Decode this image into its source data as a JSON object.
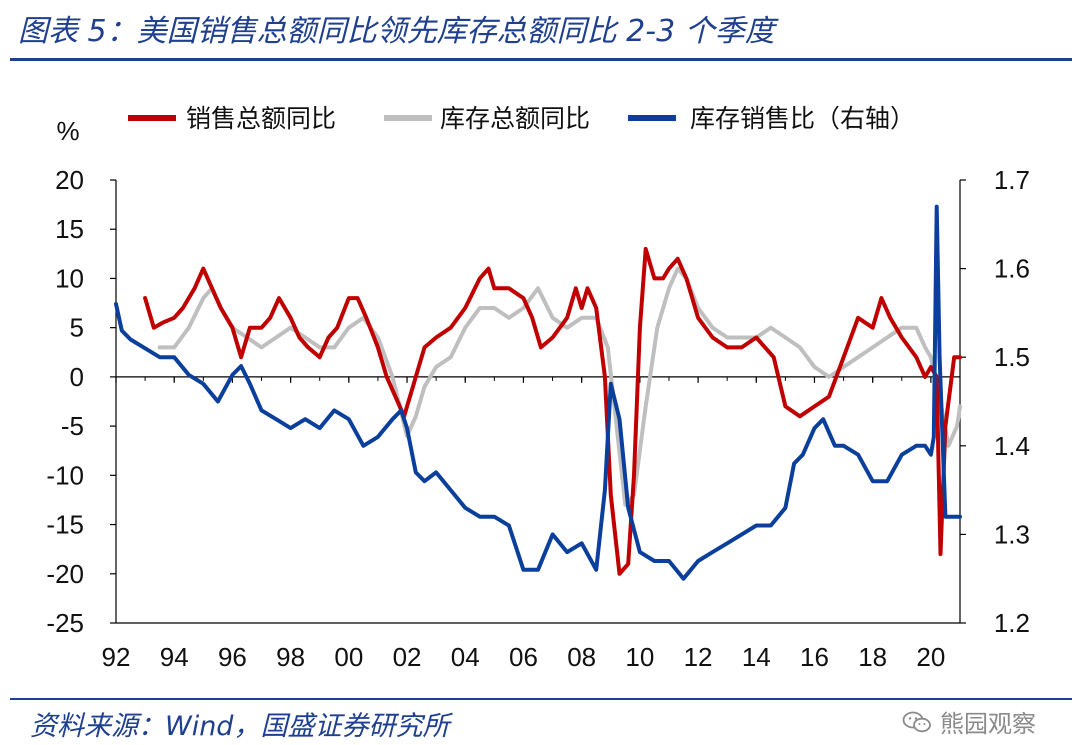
{
  "header": {
    "title": "图表 5：美国销售总额同比领先库存总额同比 2-3 个季度"
  },
  "footer": {
    "source": "资料来源：Wind，国盛证券研究所",
    "watermark_text": "熊园观察",
    "watermark_icon": "wechat-icon"
  },
  "colors": {
    "sales": "#c00000",
    "inventory": "#bfbfbf",
    "ratio": "#0b3f9c",
    "brand": "#1f3f8f"
  },
  "chart_data": {
    "type": "line",
    "left_unit": "%",
    "legend_position": "top",
    "grid": false,
    "x_ticks": [
      "92",
      "94",
      "96",
      "98",
      "00",
      "02",
      "04",
      "06",
      "08",
      "10",
      "12",
      "14",
      "16",
      "18",
      "20"
    ],
    "left_ylim": [
      -25,
      20
    ],
    "left_ticks": [
      "20",
      "15",
      "10",
      "5",
      "0",
      "-5",
      "-10",
      "-15",
      "-20",
      "-25"
    ],
    "right_ylim": [
      1.2,
      1.7
    ],
    "right_ticks": [
      "1.7",
      "1.6",
      "1.5",
      "1.4",
      "1.3",
      "1.2"
    ],
    "series": [
      {
        "name": "销售总额同比",
        "axis": "left",
        "points": [
          [
            1993.0,
            8
          ],
          [
            1993.3,
            5
          ],
          [
            1993.6,
            5.5
          ],
          [
            1994.0,
            6
          ],
          [
            1994.3,
            7
          ],
          [
            1994.7,
            9
          ],
          [
            1995.0,
            11
          ],
          [
            1995.3,
            9
          ],
          [
            1995.6,
            7
          ],
          [
            1996.0,
            5
          ],
          [
            1996.3,
            2
          ],
          [
            1996.6,
            5
          ],
          [
            1997.0,
            5
          ],
          [
            1997.3,
            6
          ],
          [
            1997.6,
            8
          ],
          [
            1998.0,
            6
          ],
          [
            1998.3,
            4
          ],
          [
            1998.6,
            3
          ],
          [
            1999.0,
            2
          ],
          [
            1999.3,
            4
          ],
          [
            1999.6,
            5
          ],
          [
            2000.0,
            8
          ],
          [
            2000.3,
            8
          ],
          [
            2000.6,
            6
          ],
          [
            2001.0,
            3
          ],
          [
            2001.3,
            0
          ],
          [
            2001.6,
            -2
          ],
          [
            2001.9,
            -4
          ],
          [
            2002.2,
            -1
          ],
          [
            2002.6,
            3
          ],
          [
            2003.0,
            4
          ],
          [
            2003.5,
            5
          ],
          [
            2004.0,
            7
          ],
          [
            2004.5,
            10
          ],
          [
            2004.8,
            11
          ],
          [
            2005.0,
            9
          ],
          [
            2005.5,
            9
          ],
          [
            2006.0,
            8
          ],
          [
            2006.3,
            6
          ],
          [
            2006.6,
            3
          ],
          [
            2007.0,
            4
          ],
          [
            2007.5,
            6
          ],
          [
            2007.8,
            9
          ],
          [
            2008.0,
            7
          ],
          [
            2008.2,
            9
          ],
          [
            2008.5,
            7
          ],
          [
            2008.8,
            0
          ],
          [
            2009.0,
            -12
          ],
          [
            2009.3,
            -20
          ],
          [
            2009.6,
            -19
          ],
          [
            2009.8,
            -10
          ],
          [
            2010.0,
            5
          ],
          [
            2010.2,
            13
          ],
          [
            2010.5,
            10
          ],
          [
            2010.8,
            10
          ],
          [
            2011.0,
            11
          ],
          [
            2011.3,
            12
          ],
          [
            2011.6,
            10
          ],
          [
            2012.0,
            6
          ],
          [
            2012.5,
            4
          ],
          [
            2013.0,
            3
          ],
          [
            2013.5,
            3
          ],
          [
            2014.0,
            4
          ],
          [
            2014.3,
            3
          ],
          [
            2014.6,
            2
          ],
          [
            2015.0,
            -3
          ],
          [
            2015.5,
            -4
          ],
          [
            2016.0,
            -3
          ],
          [
            2016.5,
            -2
          ],
          [
            2017.0,
            2
          ],
          [
            2017.5,
            6
          ],
          [
            2018.0,
            5
          ],
          [
            2018.3,
            8
          ],
          [
            2018.6,
            6
          ],
          [
            2019.0,
            4
          ],
          [
            2019.5,
            2
          ],
          [
            2019.8,
            0
          ],
          [
            2020.0,
            1
          ],
          [
            2020.2,
            0
          ],
          [
            2020.33,
            -18
          ],
          [
            2020.5,
            -5
          ],
          [
            2020.8,
            2
          ],
          [
            2021.0,
            2
          ]
        ]
      },
      {
        "name": "库存总额同比",
        "axis": "left",
        "points": [
          [
            1993.5,
            3
          ],
          [
            1994.0,
            3
          ],
          [
            1994.5,
            5
          ],
          [
            1995.0,
            8
          ],
          [
            1995.3,
            9
          ],
          [
            1995.6,
            7
          ],
          [
            1996.0,
            5
          ],
          [
            1996.5,
            4
          ],
          [
            1997.0,
            3
          ],
          [
            1997.5,
            4
          ],
          [
            1998.0,
            5
          ],
          [
            1998.5,
            4
          ],
          [
            1999.0,
            3
          ],
          [
            1999.5,
            3
          ],
          [
            2000.0,
            5
          ],
          [
            2000.5,
            6
          ],
          [
            2001.0,
            4
          ],
          [
            2001.5,
            0
          ],
          [
            2002.0,
            -6
          ],
          [
            2002.3,
            -4
          ],
          [
            2002.6,
            -1
          ],
          [
            2003.0,
            1
          ],
          [
            2003.5,
            2
          ],
          [
            2004.0,
            5
          ],
          [
            2004.5,
            7
          ],
          [
            2005.0,
            7
          ],
          [
            2005.5,
            6
          ],
          [
            2006.0,
            7
          ],
          [
            2006.5,
            9
          ],
          [
            2007.0,
            6
          ],
          [
            2007.5,
            5
          ],
          [
            2008.0,
            6
          ],
          [
            2008.5,
            6
          ],
          [
            2008.9,
            3
          ],
          [
            2009.2,
            -5
          ],
          [
            2009.5,
            -13
          ],
          [
            2009.8,
            -12
          ],
          [
            2010.2,
            -3
          ],
          [
            2010.6,
            5
          ],
          [
            2011.0,
            9
          ],
          [
            2011.3,
            11
          ],
          [
            2011.6,
            10
          ],
          [
            2012.0,
            7
          ],
          [
            2012.5,
            5
          ],
          [
            2013.0,
            4
          ],
          [
            2013.5,
            4
          ],
          [
            2014.0,
            4
          ],
          [
            2014.5,
            5
          ],
          [
            2015.0,
            4
          ],
          [
            2015.5,
            3
          ],
          [
            2016.0,
            1
          ],
          [
            2016.5,
            0
          ],
          [
            2017.0,
            1
          ],
          [
            2017.5,
            2
          ],
          [
            2018.0,
            3
          ],
          [
            2018.5,
            4
          ],
          [
            2019.0,
            5
          ],
          [
            2019.5,
            5
          ],
          [
            2019.8,
            3
          ],
          [
            2020.0,
            2
          ],
          [
            2020.3,
            -2
          ],
          [
            2020.6,
            -7
          ],
          [
            2020.9,
            -5
          ],
          [
            2021.0,
            -3
          ]
        ]
      },
      {
        "name": "库存销售比（右轴）",
        "axis": "right",
        "points": [
          [
            1992.0,
            1.56
          ],
          [
            1992.2,
            1.53
          ],
          [
            1992.5,
            1.52
          ],
          [
            1993.0,
            1.51
          ],
          [
            1993.5,
            1.5
          ],
          [
            1994.0,
            1.5
          ],
          [
            1994.5,
            1.48
          ],
          [
            1995.0,
            1.47
          ],
          [
            1995.5,
            1.45
          ],
          [
            1996.0,
            1.48
          ],
          [
            1996.3,
            1.49
          ],
          [
            1996.6,
            1.47
          ],
          [
            1997.0,
            1.44
          ],
          [
            1997.5,
            1.43
          ],
          [
            1998.0,
            1.42
          ],
          [
            1998.5,
            1.43
          ],
          [
            1999.0,
            1.42
          ],
          [
            1999.5,
            1.44
          ],
          [
            2000.0,
            1.43
          ],
          [
            2000.5,
            1.4
          ],
          [
            2001.0,
            1.41
          ],
          [
            2001.5,
            1.43
          ],
          [
            2001.8,
            1.44
          ],
          [
            2002.0,
            1.42
          ],
          [
            2002.3,
            1.37
          ],
          [
            2002.6,
            1.36
          ],
          [
            2003.0,
            1.37
          ],
          [
            2003.5,
            1.35
          ],
          [
            2004.0,
            1.33
          ],
          [
            2004.5,
            1.32
          ],
          [
            2005.0,
            1.32
          ],
          [
            2005.5,
            1.31
          ],
          [
            2006.0,
            1.26
          ],
          [
            2006.5,
            1.26
          ],
          [
            2007.0,
            1.3
          ],
          [
            2007.5,
            1.28
          ],
          [
            2008.0,
            1.29
          ],
          [
            2008.5,
            1.26
          ],
          [
            2008.8,
            1.35
          ],
          [
            2009.0,
            1.47
          ],
          [
            2009.3,
            1.43
          ],
          [
            2009.6,
            1.33
          ],
          [
            2010.0,
            1.28
          ],
          [
            2010.5,
            1.27
          ],
          [
            2011.0,
            1.27
          ],
          [
            2011.5,
            1.25
          ],
          [
            2012.0,
            1.27
          ],
          [
            2012.5,
            1.28
          ],
          [
            2013.0,
            1.29
          ],
          [
            2013.5,
            1.3
          ],
          [
            2014.0,
            1.31
          ],
          [
            2014.5,
            1.31
          ],
          [
            2015.0,
            1.33
          ],
          [
            2015.3,
            1.38
          ],
          [
            2015.6,
            1.39
          ],
          [
            2016.0,
            1.42
          ],
          [
            2016.3,
            1.43
          ],
          [
            2016.7,
            1.4
          ],
          [
            2017.0,
            1.4
          ],
          [
            2017.5,
            1.39
          ],
          [
            2018.0,
            1.36
          ],
          [
            2018.5,
            1.36
          ],
          [
            2019.0,
            1.39
          ],
          [
            2019.5,
            1.4
          ],
          [
            2019.8,
            1.4
          ],
          [
            2020.0,
            1.39
          ],
          [
            2020.1,
            1.41
          ],
          [
            2020.2,
            1.67
          ],
          [
            2020.3,
            1.5
          ],
          [
            2020.5,
            1.32
          ],
          [
            2020.8,
            1.32
          ],
          [
            2021.0,
            1.32
          ]
        ]
      }
    ]
  }
}
